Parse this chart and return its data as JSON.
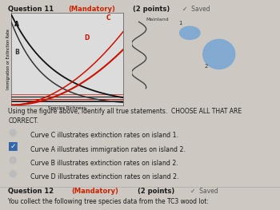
{
  "bg_color": "#cdc8c2",
  "title_color_normal": "#1a1a1a",
  "title_color_mandatory": "#cc2200",
  "saved_text": "✓  Saved",
  "ylabel": "Immigration or Extinction Rate",
  "xlabel": "Species Richness",
  "mainland_label": "Mainland",
  "question_body": "Using the figure above, identify all true statements.  CHOOSE ALL THAT ARE\nCORRECT.",
  "options": [
    {
      "text": "Curve C illustrates extinction rates on island 1.",
      "checked": false
    },
    {
      "text": "Curve A illustrates immigration rates on island 2.",
      "checked": true
    },
    {
      "text": "Curve B illustrates extinction rates on island 2.",
      "checked": false
    },
    {
      "text": "Curve D illustrates extinction rates on island 2.",
      "checked": false
    }
  ],
  "q12_body": "You collect the following tree species data from the TC3 wood lot:"
}
